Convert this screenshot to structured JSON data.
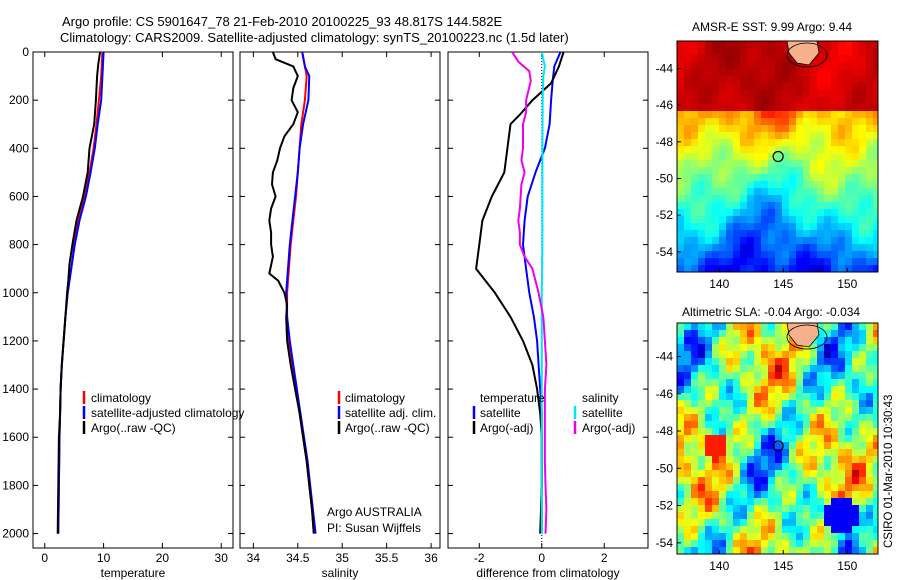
{
  "header": {
    "line1": "Argo profile: CS 5901647_78 21-Feb-2010 20100225_93 48.817S 144.582E",
    "line2": "Climatology: CARS2009. Satellite-adjusted climatology: synTS_20100223.nc (1.5d later)"
  },
  "colors": {
    "climatology": "#ff0000",
    "satellite": "#0000ff",
    "argo": "#000000",
    "sat_sal": "#00e5ff",
    "argo_sal": "#ee00ee",
    "float_marker": "#f5b08c"
  },
  "chart_data": [
    {
      "id": "temperature",
      "type": "line",
      "xlabel": "temperature",
      "ylabel": "",
      "xlim": [
        -2,
        32
      ],
      "ylim": [
        0,
        2060
      ],
      "y_inverted": true,
      "xticks": [
        0,
        10,
        20,
        30
      ],
      "yticks": [
        0,
        200,
        400,
        600,
        800,
        1000,
        1200,
        1400,
        1600,
        1800,
        2000
      ],
      "legend": [
        "climatology",
        "satellite-adjusted climatology",
        "Argo(..raw -QC)"
      ],
      "series": [
        {
          "name": "climatology",
          "color": "#ff0000",
          "points": [
            [
              9.8,
              0
            ],
            [
              9.6,
              100
            ],
            [
              9.2,
              200
            ],
            [
              8.8,
              300
            ],
            [
              8.3,
              400
            ],
            [
              7.6,
              500
            ],
            [
              6.8,
              600
            ],
            [
              5.7,
              700
            ],
            [
              5.0,
              800
            ],
            [
              4.5,
              900
            ],
            [
              3.9,
              1000
            ],
            [
              3.5,
              1100
            ],
            [
              3.2,
              1200
            ],
            [
              2.9,
              1300
            ],
            [
              2.7,
              1400
            ],
            [
              2.6,
              1500
            ],
            [
              2.5,
              1600
            ],
            [
              2.4,
              1800
            ],
            [
              2.3,
              2000
            ]
          ]
        },
        {
          "name": "satellite-adjusted climatology",
          "color": "#0000ff",
          "points": [
            [
              10.0,
              0
            ],
            [
              9.8,
              100
            ],
            [
              9.6,
              200
            ],
            [
              9.0,
              300
            ],
            [
              8.5,
              400
            ],
            [
              7.8,
              500
            ],
            [
              7.0,
              600
            ],
            [
              5.9,
              700
            ],
            [
              5.1,
              800
            ],
            [
              4.5,
              900
            ],
            [
              3.9,
              1000
            ],
            [
              3.5,
              1100
            ],
            [
              3.2,
              1200
            ],
            [
              2.9,
              1300
            ],
            [
              2.7,
              1400
            ],
            [
              2.6,
              1500
            ],
            [
              2.5,
              1600
            ],
            [
              2.4,
              1800
            ],
            [
              2.3,
              2000
            ]
          ]
        },
        {
          "name": "Argo(..raw -QC)",
          "color": "#000000",
          "points": [
            [
              9.4,
              0
            ],
            [
              9.1,
              50
            ],
            [
              8.9,
              100
            ],
            [
              8.7,
              200
            ],
            [
              8.4,
              300
            ],
            [
              7.6,
              400
            ],
            [
              7.3,
              500
            ],
            [
              6.5,
              600
            ],
            [
              5.4,
              700
            ],
            [
              4.7,
              800
            ],
            [
              4.2,
              880
            ],
            [
              4.0,
              950
            ],
            [
              3.8,
              1000
            ],
            [
              3.5,
              1100
            ],
            [
              3.2,
              1200
            ],
            [
              2.9,
              1300
            ],
            [
              2.7,
              1400
            ],
            [
              2.6,
              1500
            ],
            [
              2.4,
              1600
            ],
            [
              2.3,
              1800
            ],
            [
              2.2,
              2000
            ]
          ]
        }
      ]
    },
    {
      "id": "salinity",
      "type": "line",
      "xlabel": "salinity",
      "ylabel": "",
      "xlim": [
        33.85,
        36.1
      ],
      "ylim": [
        0,
        2060
      ],
      "y_inverted": true,
      "xticks": [
        34,
        34.5,
        35,
        35.5,
        36
      ],
      "legend": [
        "climatology",
        "satellite adj. clim.",
        "Argo(..raw -QC)"
      ],
      "annotations": [
        "Argo AUSTRALIA",
        "PI: Susan Wijffels"
      ],
      "series": [
        {
          "name": "climatology",
          "color": "#ff0000",
          "points": [
            [
              34.55,
              0
            ],
            [
              34.6,
              100
            ],
            [
              34.58,
              200
            ],
            [
              34.54,
              300
            ],
            [
              34.52,
              400
            ],
            [
              34.5,
              500
            ],
            [
              34.48,
              600
            ],
            [
              34.45,
              700
            ],
            [
              34.42,
              800
            ],
            [
              34.4,
              900
            ],
            [
              34.38,
              1000
            ],
            [
              34.38,
              1100
            ],
            [
              34.4,
              1200
            ],
            [
              34.44,
              1300
            ],
            [
              34.48,
              1400
            ],
            [
              34.52,
              1500
            ],
            [
              34.56,
              1600
            ],
            [
              34.6,
              1700
            ],
            [
              34.63,
              1800
            ],
            [
              34.66,
              1900
            ],
            [
              34.68,
              2000
            ]
          ]
        },
        {
          "name": "satellite adj. clim.",
          "color": "#0000ff",
          "points": [
            [
              34.55,
              0
            ],
            [
              34.58,
              60
            ],
            [
              34.63,
              100
            ],
            [
              34.62,
              200
            ],
            [
              34.56,
              300
            ],
            [
              34.52,
              400
            ],
            [
              34.5,
              500
            ],
            [
              34.47,
              600
            ],
            [
              34.44,
              700
            ],
            [
              34.41,
              800
            ],
            [
              34.39,
              900
            ],
            [
              34.37,
              1000
            ],
            [
              34.38,
              1100
            ],
            [
              34.41,
              1200
            ],
            [
              34.45,
              1300
            ],
            [
              34.49,
              1400
            ],
            [
              34.53,
              1500
            ],
            [
              34.57,
              1600
            ],
            [
              34.61,
              1700
            ],
            [
              34.64,
              1800
            ],
            [
              34.67,
              1900
            ],
            [
              34.7,
              2000
            ]
          ]
        },
        {
          "name": "Argo(..raw -QC)",
          "color": "#000000",
          "points": [
            [
              34.22,
              0
            ],
            [
              34.25,
              30
            ],
            [
              34.45,
              60
            ],
            [
              34.5,
              100
            ],
            [
              34.45,
              150
            ],
            [
              34.43,
              200
            ],
            [
              34.5,
              250
            ],
            [
              34.45,
              300
            ],
            [
              34.35,
              350
            ],
            [
              34.3,
              400
            ],
            [
              34.27,
              450
            ],
            [
              34.22,
              500
            ],
            [
              34.21,
              550
            ],
            [
              34.25,
              600
            ],
            [
              34.2,
              650
            ],
            [
              34.18,
              700
            ],
            [
              34.2,
              750
            ],
            [
              34.2,
              800
            ],
            [
              34.22,
              850
            ],
            [
              34.18,
              920
            ],
            [
              34.28,
              950
            ],
            [
              34.35,
              1000
            ],
            [
              34.38,
              1050
            ],
            [
              34.37,
              1100
            ],
            [
              34.38,
              1200
            ],
            [
              34.42,
              1300
            ],
            [
              34.47,
              1400
            ],
            [
              34.52,
              1500
            ],
            [
              34.56,
              1600
            ],
            [
              34.6,
              1700
            ],
            [
              34.63,
              1800
            ],
            [
              34.66,
              1900
            ],
            [
              34.68,
              2000
            ]
          ]
        }
      ]
    },
    {
      "id": "difference",
      "type": "line",
      "xlabel": "difference from climatology",
      "ylabel": "",
      "xlim": [
        -3,
        3.4
      ],
      "ylim": [
        0,
        2060
      ],
      "y_inverted": true,
      "xticks": [
        -2,
        0,
        2
      ],
      "legend_left_title": "temperature",
      "legend_right_title": "salinity",
      "legend_left": [
        "satellite",
        "Argo(-adj)"
      ],
      "legend_right": [
        "satellite",
        "Argo(-adj)"
      ],
      "series": [
        {
          "name": "temperature satellite",
          "color": "#0000ff",
          "points": [
            [
              0.6,
              0
            ],
            [
              0.4,
              60
            ],
            [
              0.35,
              120
            ],
            [
              0.3,
              200
            ],
            [
              0.25,
              300
            ],
            [
              0.1,
              400
            ],
            [
              -0.2,
              500
            ],
            [
              -0.45,
              600
            ],
            [
              -0.55,
              700
            ],
            [
              -0.6,
              800
            ],
            [
              -0.5,
              900
            ],
            [
              -0.4,
              1000
            ],
            [
              -0.25,
              1100
            ],
            [
              -0.15,
              1200
            ],
            [
              -0.1,
              1300
            ],
            [
              -0.05,
              1400
            ],
            [
              0,
              1500
            ],
            [
              0,
              1600
            ],
            [
              0,
              1800
            ],
            [
              0,
              2000
            ]
          ]
        },
        {
          "name": "temperature Argo(-adj)",
          "color": "#000000",
          "points": [
            [
              0.7,
              0
            ],
            [
              0.55,
              60
            ],
            [
              0.3,
              130
            ],
            [
              -0.3,
              200
            ],
            [
              -0.7,
              260
            ],
            [
              -1.0,
              300
            ],
            [
              -1.1,
              400
            ],
            [
              -1.2,
              500
            ],
            [
              -1.6,
              600
            ],
            [
              -1.9,
              700
            ],
            [
              -2.0,
              800
            ],
            [
              -2.1,
              900
            ],
            [
              -1.8,
              950
            ],
            [
              -1.5,
              1000
            ],
            [
              -1.0,
              1100
            ],
            [
              -0.6,
              1200
            ],
            [
              -0.3,
              1300
            ],
            [
              -0.15,
              1400
            ],
            [
              -0.05,
              1500
            ],
            [
              0,
              1600
            ],
            [
              0,
              1800
            ],
            [
              -0.05,
              2000
            ]
          ]
        },
        {
          "name": "salinity satellite",
          "color": "#00e5ff",
          "points": [
            [
              0,
              0
            ],
            [
              0.1,
              60
            ],
            [
              0.05,
              100
            ],
            [
              0.03,
              200
            ],
            [
              0.02,
              400
            ],
            [
              0.02,
              600
            ],
            [
              0.02,
              800
            ],
            [
              0,
              1000
            ],
            [
              0,
              1200
            ],
            [
              0,
              1400
            ],
            [
              0,
              1600
            ],
            [
              0,
              1800
            ],
            [
              0,
              2000
            ]
          ]
        },
        {
          "name": "salinity Argo(-adj)",
          "color": "#ee00ee",
          "points": [
            [
              -0.95,
              0
            ],
            [
              -0.75,
              40
            ],
            [
              -0.4,
              80
            ],
            [
              -0.35,
              120
            ],
            [
              -0.5,
              200
            ],
            [
              -0.5,
              250
            ],
            [
              -0.6,
              300
            ],
            [
              -0.6,
              400
            ],
            [
              -0.65,
              450
            ],
            [
              -0.55,
              500
            ],
            [
              -0.65,
              550
            ],
            [
              -0.7,
              650
            ],
            [
              -0.75,
              700
            ],
            [
              -0.7,
              750
            ],
            [
              -0.7,
              800
            ],
            [
              -0.55,
              850
            ],
            [
              -0.3,
              900
            ],
            [
              -0.2,
              950
            ],
            [
              -0.1,
              1000
            ],
            [
              0.05,
              1100
            ],
            [
              0.1,
              1200
            ],
            [
              0.15,
              1300
            ],
            [
              0.1,
              1400
            ],
            [
              0.1,
              1500
            ],
            [
              0.1,
              1600
            ],
            [
              0.1,
              1700
            ],
            [
              0.12,
              1800
            ],
            [
              0.15,
              1900
            ],
            [
              0.12,
              2000
            ]
          ]
        }
      ]
    },
    {
      "id": "sst_map",
      "type": "heatmap",
      "title": "AMSR-E SST: 9.99 Argo: 9.44",
      "xlim": [
        136.7,
        152.4
      ],
      "ylim": [
        -55.1,
        -42.5
      ],
      "xticks": [
        140,
        145,
        150
      ],
      "yticks": [
        -44,
        -46,
        -48,
        -50,
        -52,
        -54
      ],
      "float_position": [
        144.6,
        -48.8
      ]
    },
    {
      "id": "sla_map",
      "type": "heatmap",
      "title": "Altimetric SLA: -0.04 Argo: -0.034",
      "xlim": [
        136.7,
        152.4
      ],
      "ylim": [
        -54.6,
        -42.2
      ],
      "xticks": [
        140,
        145,
        150
      ],
      "yticks": [
        -44,
        -46,
        -48,
        -50,
        -52,
        -54
      ],
      "float_position": [
        144.6,
        -48.8
      ]
    }
  ],
  "side_label": "CSIRO 01-Mar-2010 10:30:43"
}
